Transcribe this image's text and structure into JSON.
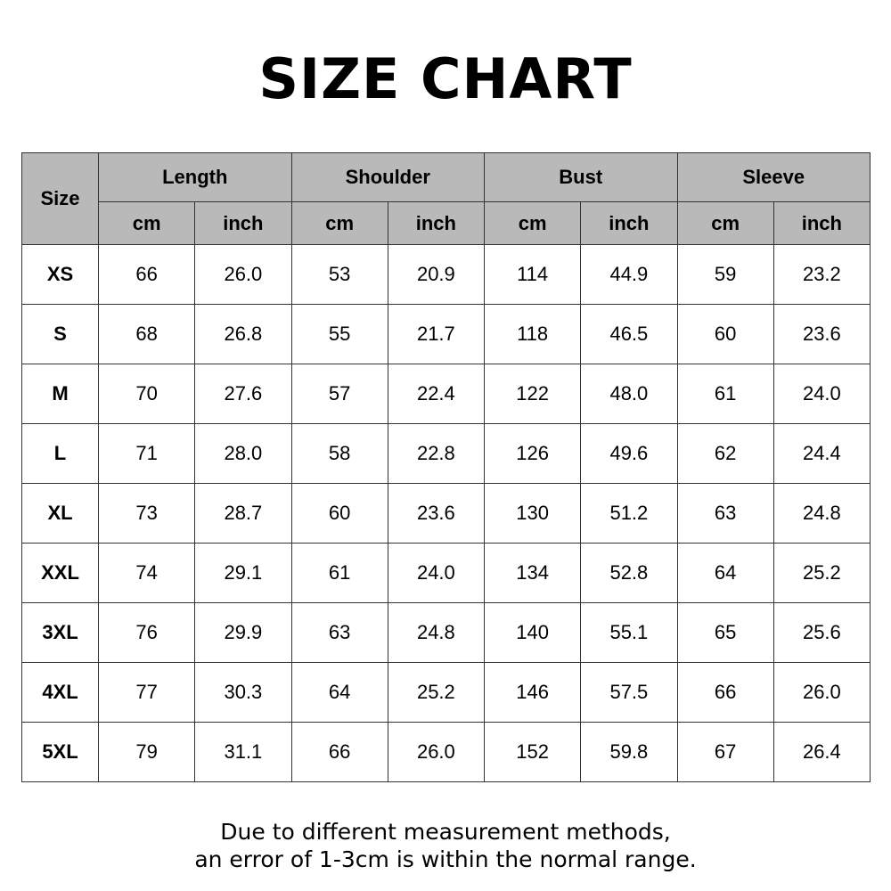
{
  "title": "SIZE CHART",
  "headers": {
    "size": "Size",
    "groups": [
      "Length",
      "Shoulder",
      "Bust",
      "Sleeve"
    ],
    "units": [
      "cm",
      "inch",
      "cm",
      "inch",
      "cm",
      "inch",
      "cm",
      "inch"
    ]
  },
  "rows": [
    {
      "size": "XS",
      "values": [
        "66",
        "26.0",
        "53",
        "20.9",
        "114",
        "44.9",
        "59",
        "23.2"
      ]
    },
    {
      "size": "S",
      "values": [
        "68",
        "26.8",
        "55",
        "21.7",
        "118",
        "46.5",
        "60",
        "23.6"
      ]
    },
    {
      "size": "M",
      "values": [
        "70",
        "27.6",
        "57",
        "22.4",
        "122",
        "48.0",
        "61",
        "24.0"
      ]
    },
    {
      "size": "L",
      "values": [
        "71",
        "28.0",
        "58",
        "22.8",
        "126",
        "49.6",
        "62",
        "24.4"
      ]
    },
    {
      "size": "XL",
      "values": [
        "73",
        "28.7",
        "60",
        "23.6",
        "130",
        "51.2",
        "63",
        "24.8"
      ]
    },
    {
      "size": "XXL",
      "values": [
        "74",
        "29.1",
        "61",
        "24.0",
        "134",
        "52.8",
        "64",
        "25.2"
      ]
    },
    {
      "size": "3XL",
      "values": [
        "76",
        "29.9",
        "63",
        "24.8",
        "140",
        "55.1",
        "65",
        "25.6"
      ]
    },
    {
      "size": "4XL",
      "values": [
        "77",
        "30.3",
        "64",
        "25.2",
        "146",
        "57.5",
        "66",
        "26.0"
      ]
    },
    {
      "size": "5XL",
      "values": [
        "79",
        "31.1",
        "66",
        "26.0",
        "152",
        "59.8",
        "67",
        "26.4"
      ]
    }
  ],
  "note": {
    "line1": "Due to different measurement methods,",
    "line2": "an error of 1-3cm is within the normal range."
  },
  "colors": {
    "header_bg": "#b9b9b9",
    "border": "#333333"
  }
}
